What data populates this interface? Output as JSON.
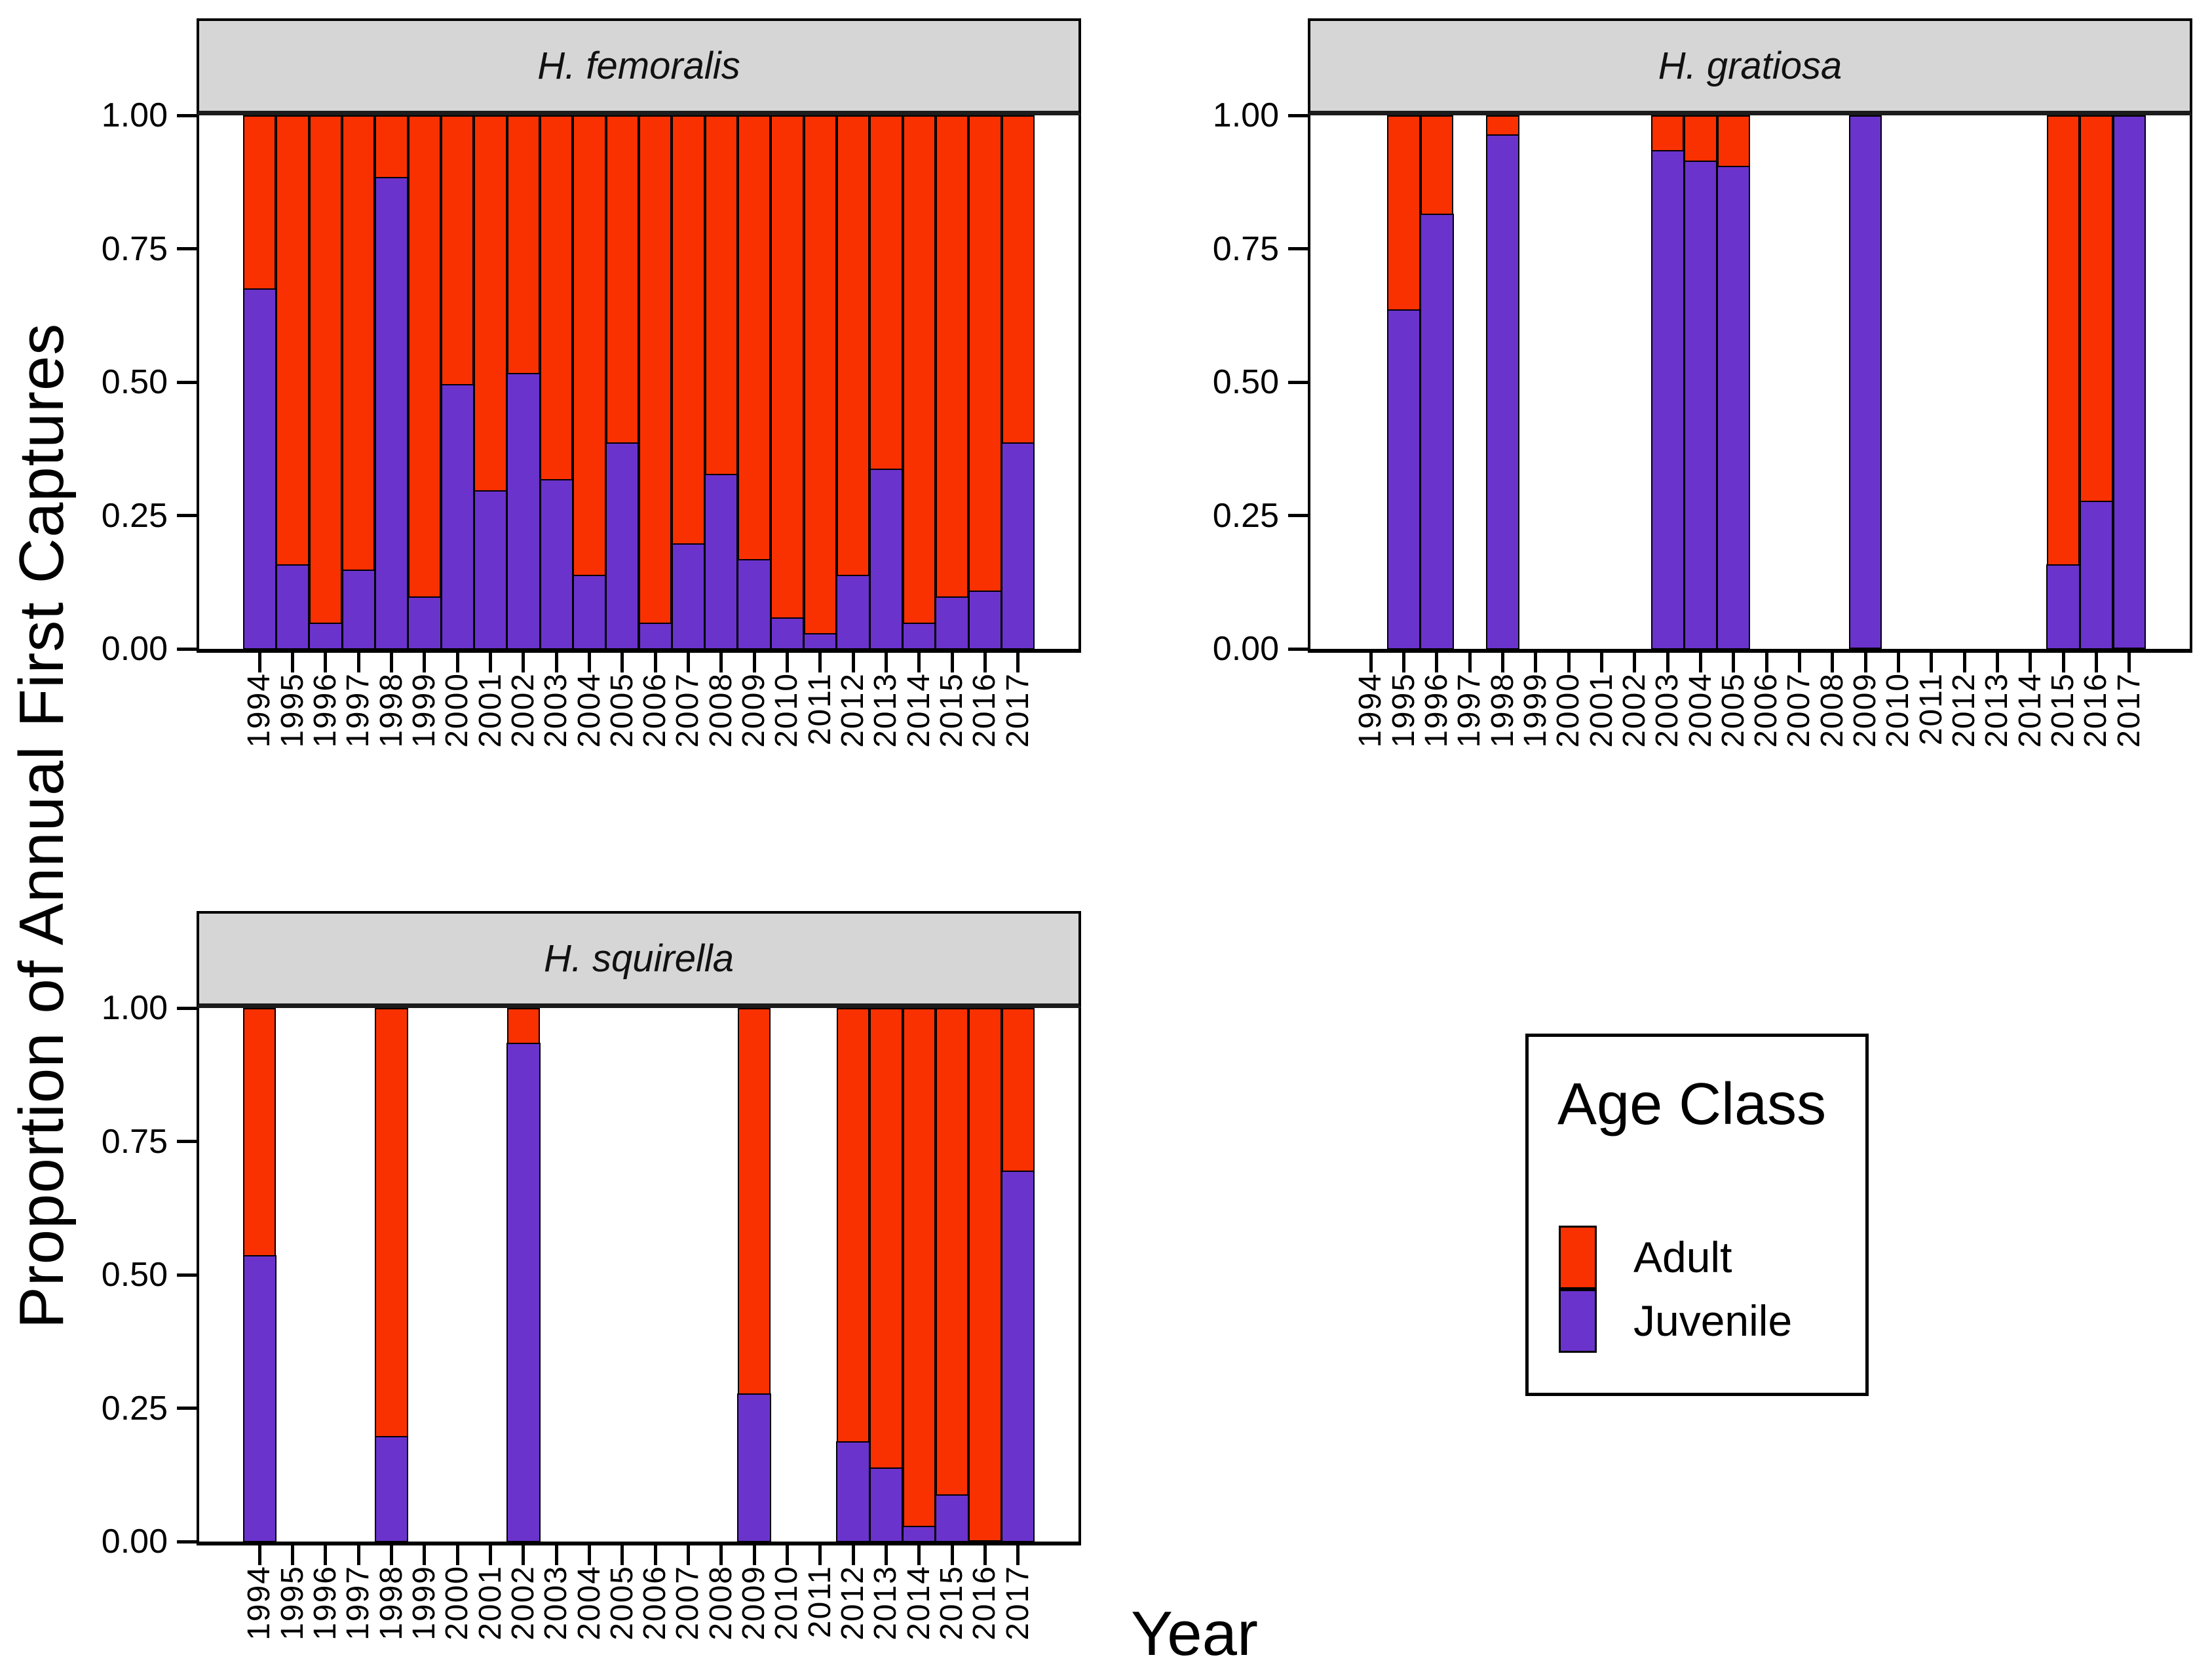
{
  "figure": {
    "y_axis_title": "Proportion of Annual First Captures",
    "x_axis_title": "Year"
  },
  "axes": {
    "y_ticks": [
      {
        "label": "1.00",
        "value": 1.0
      },
      {
        "label": "0.75",
        "value": 0.75
      },
      {
        "label": "0.50",
        "value": 0.5
      },
      {
        "label": "0.25",
        "value": 0.25
      },
      {
        "label": "0.00",
        "value": 0.0
      }
    ],
    "years": [
      "1994",
      "1995",
      "1996",
      "1997",
      "1998",
      "1999",
      "2000",
      "2001",
      "2002",
      "2003",
      "2004",
      "2005",
      "2006",
      "2007",
      "2008",
      "2009",
      "2010",
      "2011",
      "2012",
      "2013",
      "2014",
      "2015",
      "2016",
      "2017"
    ]
  },
  "colors": {
    "adult": "#f93100",
    "juvenile": "#6a33cc",
    "strip_background": "#d6d6d6",
    "border": "#000000"
  },
  "legend": {
    "title": "Age Class",
    "items": [
      {
        "label": "Adult",
        "color": "#f93100"
      },
      {
        "label": "Juvenile",
        "color": "#6a33cc"
      }
    ]
  },
  "chart_data": [
    {
      "type": "bar",
      "stacked": true,
      "panel": "H. femoralis",
      "xlabel": "Year",
      "ylabel": "Proportion of Annual First Captures",
      "ylim": [
        0,
        1
      ],
      "grid": false,
      "categories": [
        "1994",
        "1995",
        "1996",
        "1997",
        "1998",
        "1999",
        "2000",
        "2001",
        "2002",
        "2003",
        "2004",
        "2005",
        "2006",
        "2007",
        "2008",
        "2009",
        "2010",
        "2011",
        "2012",
        "2013",
        "2014",
        "2015",
        "2016",
        "2017"
      ],
      "series": [
        {
          "name": "Adult",
          "values": [
            0.32,
            0.84,
            0.95,
            0.85,
            0.11,
            0.9,
            0.5,
            0.7,
            0.48,
            0.68,
            0.86,
            0.61,
            0.95,
            0.8,
            0.67,
            0.83,
            0.94,
            0.97,
            0.86,
            0.66,
            0.95,
            0.9,
            0.89,
            0.61
          ]
        },
        {
          "name": "Juvenile",
          "values": [
            0.68,
            0.16,
            0.05,
            0.15,
            0.89,
            0.1,
            0.5,
            0.3,
            0.52,
            0.32,
            0.14,
            0.39,
            0.05,
            0.2,
            0.33,
            0.17,
            0.06,
            0.03,
            0.14,
            0.34,
            0.05,
            0.1,
            0.11,
            0.39
          ]
        }
      ]
    },
    {
      "type": "bar",
      "stacked": true,
      "panel": "H. gratiosa",
      "xlabel": "Year",
      "ylabel": "Proportion of Annual First Captures",
      "ylim": [
        0,
        1
      ],
      "grid": false,
      "categories": [
        "1994",
        "1995",
        "1996",
        "1997",
        "1998",
        "1999",
        "2000",
        "2001",
        "2002",
        "2003",
        "2004",
        "2005",
        "2006",
        "2007",
        "2008",
        "2009",
        "2010",
        "2011",
        "2012",
        "2013",
        "2014",
        "2015",
        "2016",
        "2017"
      ],
      "series": [
        {
          "name": "Adult",
          "values": [
            null,
            0.36,
            0.18,
            null,
            0.03,
            null,
            null,
            null,
            null,
            0.06,
            0.08,
            0.09,
            null,
            null,
            null,
            0.0,
            null,
            null,
            null,
            null,
            null,
            0.84,
            0.72,
            0.0
          ]
        },
        {
          "name": "Juvenile",
          "values": [
            null,
            0.64,
            0.82,
            null,
            0.97,
            null,
            null,
            null,
            null,
            0.94,
            0.92,
            0.91,
            null,
            null,
            null,
            1.0,
            null,
            null,
            null,
            null,
            null,
            0.16,
            0.28,
            1.0
          ]
        }
      ]
    },
    {
      "type": "bar",
      "stacked": true,
      "panel": "H. squirella",
      "xlabel": "Year",
      "ylabel": "Proportion of Annual First Captures",
      "ylim": [
        0,
        1
      ],
      "grid": false,
      "categories": [
        "1994",
        "1995",
        "1996",
        "1997",
        "1998",
        "1999",
        "2000",
        "2001",
        "2002",
        "2003",
        "2004",
        "2005",
        "2006",
        "2007",
        "2008",
        "2009",
        "2010",
        "2011",
        "2012",
        "2013",
        "2014",
        "2015",
        "2016",
        "2017"
      ],
      "series": [
        {
          "name": "Adult",
          "values": [
            0.46,
            null,
            null,
            null,
            0.8,
            null,
            null,
            null,
            0.06,
            null,
            null,
            null,
            null,
            null,
            null,
            0.72,
            null,
            null,
            0.81,
            0.86,
            0.97,
            0.91,
            1.0,
            0.3
          ]
        },
        {
          "name": "Juvenile",
          "values": [
            0.54,
            null,
            null,
            null,
            0.2,
            null,
            null,
            null,
            0.94,
            null,
            null,
            null,
            null,
            null,
            null,
            0.28,
            null,
            null,
            0.19,
            0.14,
            0.03,
            0.09,
            0.0,
            0.7
          ]
        }
      ]
    }
  ]
}
